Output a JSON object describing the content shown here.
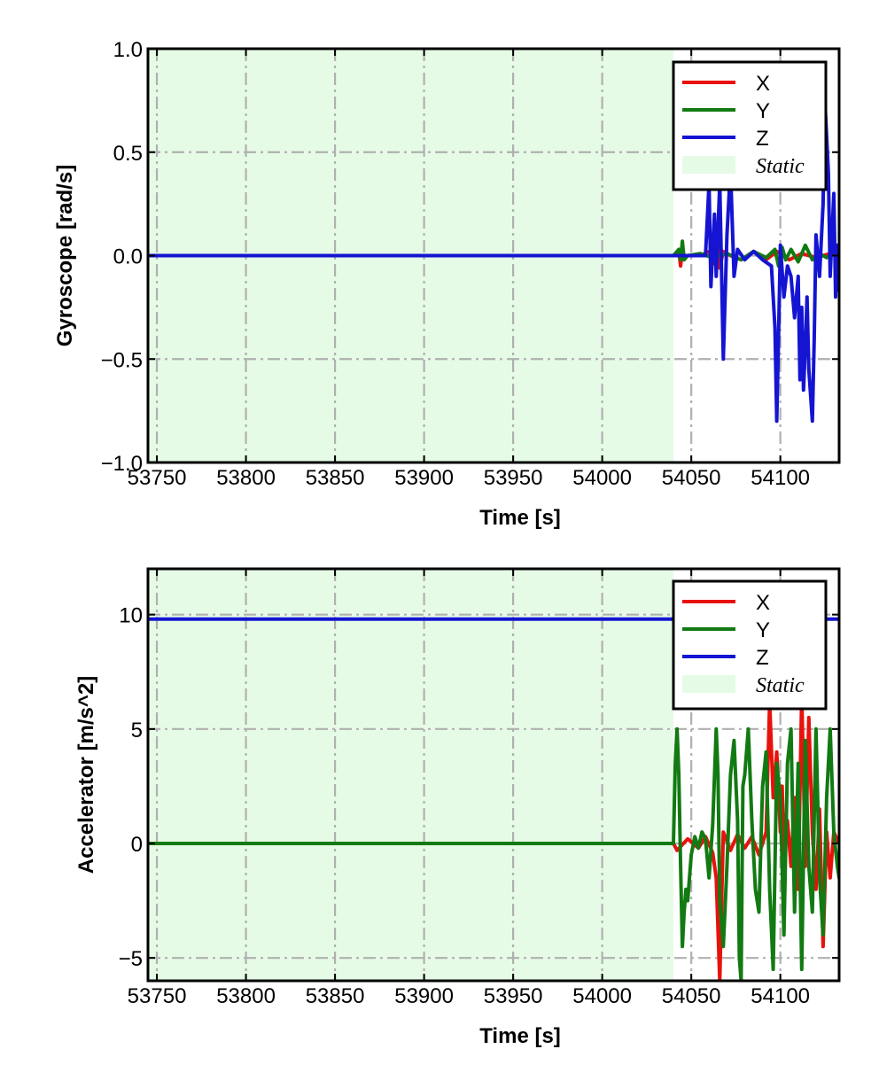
{
  "chart_data": [
    {
      "type": "line",
      "title": "",
      "xlabel": "Time [s]",
      "ylabel": "Gyroscope [rad/s]",
      "xlim": [
        53745,
        54133
      ],
      "ylim": [
        -1.0,
        1.0
      ],
      "xticks": [
        53750,
        53800,
        53850,
        53900,
        53950,
        54000,
        54050,
        54100
      ],
      "xtick_labels": [
        "53750",
        "53800",
        "53850",
        "53900",
        "53950",
        "54000",
        "54050",
        "54100"
      ],
      "yticks": [
        -1.0,
        -0.5,
        0.0,
        0.5,
        1.0
      ],
      "ytick_labels": [
        "−1.0",
        "−0.5",
        "0.0",
        "0.5",
        "1.0"
      ],
      "grid": true,
      "legend_position": "top-right",
      "static_region": {
        "x_start": 53745,
        "x_end": 54040,
        "color": "#e6fbe6",
        "label": "Static"
      },
      "series": [
        {
          "name": "X",
          "color": "#e8120c",
          "x": [
            53745,
            54040,
            54043,
            54044,
            54045,
            54046,
            54055,
            54060,
            54063,
            54065,
            54066,
            54068,
            54072,
            54078,
            54085,
            54092,
            54098,
            54105,
            54112,
            54120,
            54128,
            54133
          ],
          "y": [
            0,
            0,
            0.02,
            -0.05,
            0.03,
            0,
            0,
            0.02,
            -0.04,
            0.05,
            -0.06,
            0.02,
            0,
            -0.02,
            0.02,
            -0.02,
            0.02,
            -0.02,
            0.01,
            -0.01,
            0.01,
            0
          ]
        },
        {
          "name": "Y",
          "color": "#127a12",
          "x": [
            53745,
            54040,
            54043,
            54044,
            54045,
            54046,
            54048,
            54055,
            54062,
            54070,
            54078,
            54085,
            54092,
            54097,
            54099,
            54101,
            54103,
            54106,
            54110,
            54114,
            54118,
            54122,
            54126,
            54130,
            54133
          ],
          "y": [
            0,
            0,
            0.03,
            -0.02,
            0.07,
            -0.02,
            0,
            0.01,
            -0.01,
            0.01,
            -0.02,
            0.02,
            -0.01,
            0.03,
            -0.05,
            0.04,
            -0.02,
            0.03,
            -0.03,
            0.05,
            -0.02,
            0.01,
            -0.01,
            0.01,
            0
          ]
        },
        {
          "name": "Z",
          "color": "#1414d2",
          "x": [
            53745,
            54040,
            54058,
            54060,
            54061,
            54063,
            54064,
            54066,
            54068,
            54070,
            54072,
            54074,
            54076,
            54080,
            54085,
            54090,
            54095,
            54097,
            54098,
            54099,
            54100,
            54102,
            54104,
            54106,
            54108,
            54110,
            54111,
            54112,
            54113,
            54114,
            54115,
            54116,
            54118,
            54119,
            54120,
            54122,
            54124,
            54125,
            54127,
            54128,
            54130,
            54131,
            54132,
            54133
          ],
          "y": [
            0,
            0,
            0,
            0.35,
            -0.15,
            0.2,
            -0.1,
            0.35,
            -0.5,
            0.1,
            0.42,
            -0.1,
            0.03,
            -0.02,
            0.02,
            -0.02,
            -0.05,
            -0.35,
            -0.8,
            -0.4,
            0.05,
            -0.2,
            -0.05,
            -0.1,
            -0.3,
            -0.1,
            -0.6,
            -0.25,
            -0.65,
            -0.45,
            -0.2,
            -0.55,
            -0.8,
            -0.4,
            0.1,
            -0.1,
            0.25,
            0.75,
            0.4,
            -0.1,
            0.3,
            -0.2,
            0.05,
            -0.17
          ]
        }
      ]
    },
    {
      "type": "line",
      "title": "",
      "xlabel": "Time [s]",
      "ylabel": "Accelerator [m/s^2]",
      "xlim": [
        53745,
        54133
      ],
      "ylim": [
        -6.0,
        12.0
      ],
      "xticks": [
        53750,
        53800,
        53850,
        53900,
        53950,
        54000,
        54050,
        54100
      ],
      "xtick_labels": [
        "53750",
        "53800",
        "53850",
        "53900",
        "53950",
        "54000",
        "54050",
        "54100"
      ],
      "yticks": [
        -5,
        0,
        5,
        10
      ],
      "ytick_labels": [
        "−5",
        "0",
        "5",
        "10"
      ],
      "grid": true,
      "legend_position": "top-right",
      "static_region": {
        "x_start": 53745,
        "x_end": 54040,
        "color": "#e6fbe6",
        "label": "Static"
      },
      "series": [
        {
          "name": "X",
          "color": "#e8120c",
          "x": [
            53745,
            54040,
            54042,
            54048,
            54054,
            54058,
            54062,
            54064,
            54066,
            54068,
            54072,
            54076,
            54080,
            54084,
            54088,
            54092,
            54094,
            54096,
            54098,
            54100,
            54101,
            54102,
            54104,
            54106,
            54108,
            54110,
            54112,
            54113,
            54114,
            54116,
            54118,
            54120,
            54122,
            54124,
            54126,
            54128,
            54130,
            54133
          ],
          "y": [
            0,
            0,
            -0.3,
            0.2,
            -0.2,
            0.3,
            -0.4,
            -1.5,
            -6.0,
            0.5,
            -0.3,
            0.4,
            -0.2,
            0.3,
            -0.5,
            0.5,
            6.2,
            2.0,
            4.0,
            0.5,
            2.5,
            -0.5,
            1.0,
            -1.0,
            2.0,
            -2.0,
            6.5,
            3.0,
            -1.0,
            5.5,
            0.5,
            -2.0,
            1.5,
            -4.5,
            0.5,
            -1.5,
            0.5,
            0
          ]
        },
        {
          "name": "Y",
          "color": "#127a12",
          "x": [
            53745,
            54040,
            54041,
            54042,
            54043,
            54044,
            54045,
            54046,
            54047,
            54048,
            54050,
            54052,
            54054,
            54056,
            54058,
            54060,
            54062,
            54064,
            54065,
            54066,
            54068,
            54070,
            54072,
            54074,
            54076,
            54077,
            54078,
            54079,
            54080,
            54082,
            54084,
            54086,
            54088,
            54090,
            54092,
            54094,
            54096,
            54097,
            54098,
            54100,
            54102,
            54104,
            54106,
            54108,
            54110,
            54112,
            54114,
            54116,
            54118,
            54120,
            54122,
            54124,
            54126,
            54128,
            54130,
            54132,
            54133
          ],
          "y": [
            0,
            0,
            3.5,
            5.0,
            3.0,
            -1.0,
            -4.5,
            -3.0,
            -2.0,
            -2.5,
            -0.5,
            0.3,
            -0.2,
            0.5,
            0.2,
            -1.5,
            0.8,
            5.0,
            3.0,
            -2.5,
            -4.5,
            -1.0,
            3.0,
            4.5,
            1.0,
            -5.0,
            -6.0,
            2.5,
            3.0,
            5.0,
            1.0,
            -2.0,
            -3.0,
            2.5,
            4.0,
            -2.0,
            -5.5,
            -1.0,
            3.5,
            2.0,
            -4.0,
            3.5,
            5.0,
            -3.0,
            3.5,
            -5.5,
            4.5,
            -1.0,
            -3.0,
            5.0,
            -1.5,
            -4.0,
            2.0,
            5.0,
            0.5,
            -1.0,
            -1.5
          ]
        },
        {
          "name": "Z",
          "color": "#1414d2",
          "x": [
            53745,
            54040,
            54041,
            54130,
            54131,
            54133
          ],
          "y": [
            9.8,
            9.8,
            9.8,
            9.8,
            9.8,
            9.8
          ]
        }
      ]
    }
  ]
}
